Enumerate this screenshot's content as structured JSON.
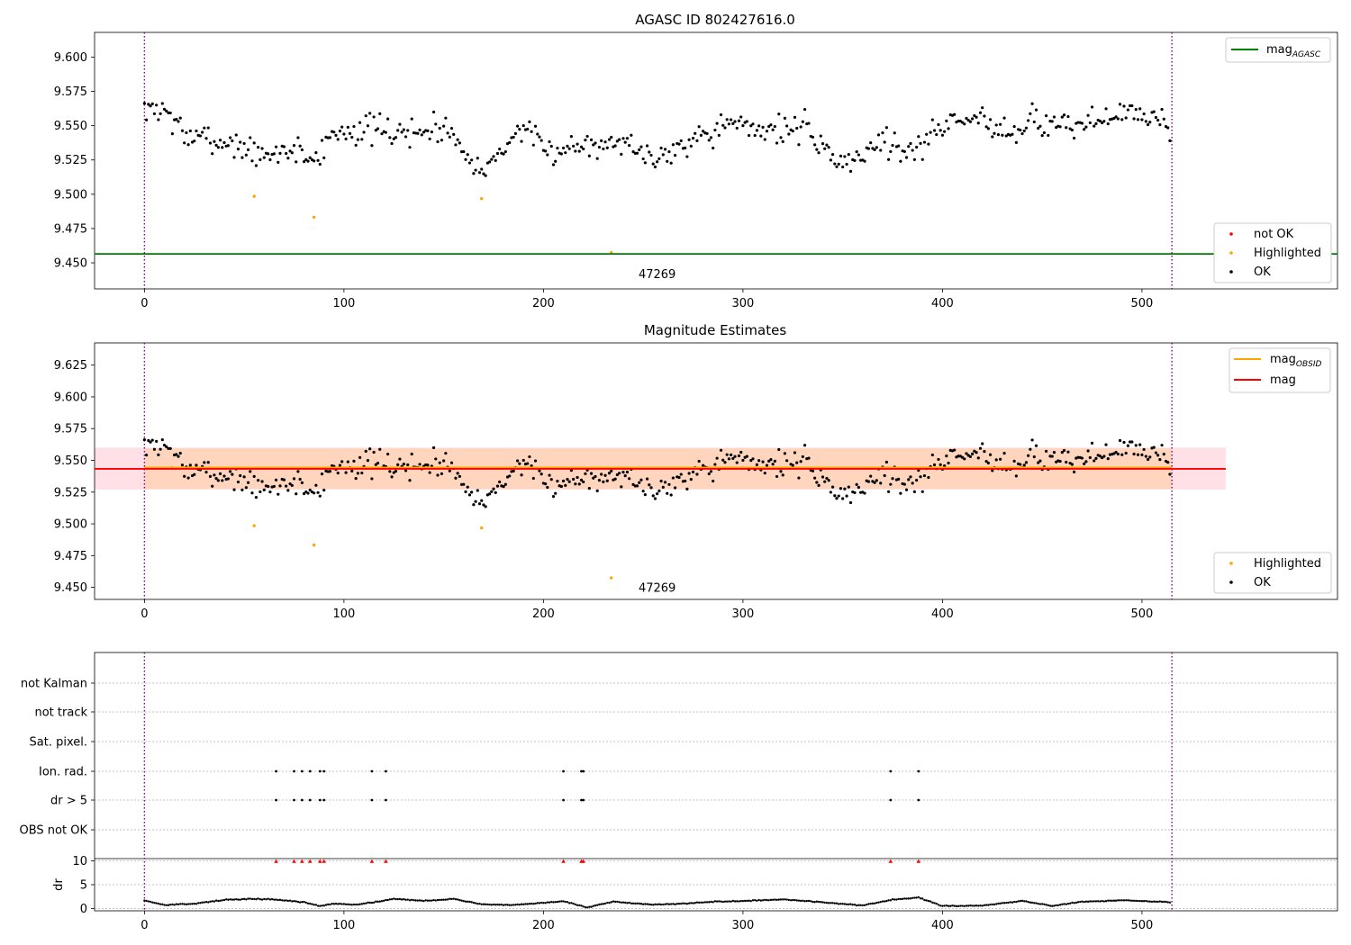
{
  "chart_data": [
    {
      "type": "scatter",
      "title": "AGASC ID 802427616.0",
      "xlim": [
        -25,
        598
      ],
      "ylim": [
        9.431,
        9.618
      ],
      "yticks": [
        "9.450",
        "9.475",
        "9.500",
        "9.525",
        "9.550",
        "9.575",
        "9.600"
      ],
      "xticks": [
        "0",
        "100",
        "200",
        "300",
        "400",
        "500"
      ],
      "obsid_bounds": [
        0,
        515
      ],
      "obsid_label": "47269",
      "obsid_label_pos": [
        257,
        9.4415
      ],
      "mag_agasc": 9.4565,
      "legend_lines": [
        {
          "name": "mag",
          "sub": "AGASC",
          "color": "#008000"
        }
      ],
      "legend_points": [
        {
          "name": "not OK",
          "color": "#ff0000"
        },
        {
          "name": "Highlighted",
          "color": "#ffa500"
        },
        {
          "name": "OK",
          "color": "#000000"
        }
      ],
      "highlighted": [
        [
          55,
          9.4985
        ],
        [
          85,
          9.4833
        ],
        [
          169,
          9.4968
        ],
        [
          234,
          9.4575
        ]
      ],
      "ok_seed": 7,
      "ok_count": 515,
      "ok_anchors": [
        [
          0,
          9.56
        ],
        [
          10,
          9.563
        ],
        [
          20,
          9.543
        ],
        [
          30,
          9.54
        ],
        [
          40,
          9.538
        ],
        [
          50,
          9.535
        ],
        [
          60,
          9.525
        ],
        [
          70,
          9.533
        ],
        [
          80,
          9.53
        ],
        [
          85,
          9.525
        ],
        [
          95,
          9.545
        ],
        [
          110,
          9.548
        ],
        [
          125,
          9.545
        ],
        [
          140,
          9.545
        ],
        [
          150,
          9.55
        ],
        [
          160,
          9.535
        ],
        [
          170,
          9.515
        ],
        [
          180,
          9.535
        ],
        [
          190,
          9.55
        ],
        [
          200,
          9.53
        ],
        [
          215,
          9.535
        ],
        [
          230,
          9.54
        ],
        [
          245,
          9.535
        ],
        [
          255,
          9.525
        ],
        [
          270,
          9.538
        ],
        [
          290,
          9.55
        ],
        [
          310,
          9.548
        ],
        [
          330,
          9.548
        ],
        [
          340,
          9.535
        ],
        [
          350,
          9.522
        ],
        [
          360,
          9.53
        ],
        [
          370,
          9.54
        ],
        [
          385,
          9.53
        ],
        [
          400,
          9.552
        ],
        [
          420,
          9.555
        ],
        [
          435,
          9.545
        ],
        [
          445,
          9.555
        ],
        [
          460,
          9.548
        ],
        [
          475,
          9.553
        ],
        [
          490,
          9.56
        ],
        [
          505,
          9.555
        ],
        [
          515,
          9.55
        ]
      ]
    },
    {
      "type": "scatter",
      "title": "Magnitude Estimates",
      "xlim": [
        -25,
        598
      ],
      "ylim": [
        9.4405,
        9.6425
      ],
      "yticks": [
        "9.450",
        "9.475",
        "9.500",
        "9.525",
        "9.550",
        "9.575",
        "9.600",
        "9.625"
      ],
      "xticks": [
        "0",
        "100",
        "200",
        "300",
        "400",
        "500"
      ],
      "obsid_bounds": [
        0,
        515
      ],
      "obsid_label": "47269",
      "obsid_label_pos": [
        257,
        9.4495
      ],
      "mag": 9.5433,
      "mag_obsid": 9.5443,
      "band_outer": [
        9.527,
        9.56
      ],
      "band_inner": [
        9.5275,
        9.5595
      ],
      "band_outer_x": [
        -25,
        542
      ],
      "band_inner_x": [
        0,
        515
      ],
      "legend_lines": [
        {
          "name": "mag",
          "sub": "OBSID",
          "color": "#ffa500"
        },
        {
          "name": "mag",
          "sub": "",
          "color": "#ff0000"
        }
      ],
      "legend_points": [
        {
          "name": "Highlighted",
          "color": "#ffa500"
        },
        {
          "name": "OK",
          "color": "#000000"
        }
      ],
      "highlighted": [
        [
          55,
          9.4985
        ],
        [
          85,
          9.4833
        ],
        [
          169,
          9.4968
        ],
        [
          234,
          9.4575
        ]
      ]
    },
    {
      "type": "scatter",
      "title": "",
      "xlim": [
        -25,
        598
      ],
      "xticks": [
        "0",
        "100",
        "200",
        "300",
        "400",
        "500"
      ],
      "obsid_bounds": [
        0,
        515
      ],
      "flag_labels": [
        "not Kalman",
        "not track",
        "Sat. pixel.",
        "Ion. rad.",
        "dr > 5",
        "OBS not OK"
      ],
      "flag_points": {
        "Ion. rad.": [
          66,
          75,
          79,
          83,
          88,
          90,
          114,
          121,
          210,
          219,
          220,
          374,
          388
        ],
        "dr > 5": [
          66,
          75,
          79,
          83,
          88,
          90,
          114,
          121,
          210,
          219,
          220,
          374,
          388
        ]
      },
      "dr_ylabel": "dr",
      "dr_yticks": [
        "0",
        "5",
        "10"
      ],
      "dr_ylim": [
        -0.5,
        10.5
      ],
      "dr_high": [
        [
          66,
          9.9
        ],
        [
          75,
          9.9
        ],
        [
          79,
          9.9
        ],
        [
          83,
          9.9
        ],
        [
          88,
          9.9
        ],
        [
          90,
          9.9
        ],
        [
          114,
          9.9
        ],
        [
          121,
          9.9
        ],
        [
          210,
          9.9
        ],
        [
          219,
          9.9
        ],
        [
          220,
          9.9
        ],
        [
          374,
          9.9
        ],
        [
          388,
          9.9
        ]
      ],
      "dr_anchors": [
        [
          0,
          1.7
        ],
        [
          10,
          0.7
        ],
        [
          25,
          1.0
        ],
        [
          40,
          1.8
        ],
        [
          55,
          2.0
        ],
        [
          65,
          1.9
        ],
        [
          80,
          1.3
        ],
        [
          88,
          0.5
        ],
        [
          95,
          1.0
        ],
        [
          105,
          0.8
        ],
        [
          115,
          1.3
        ],
        [
          125,
          2.0
        ],
        [
          140,
          1.6
        ],
        [
          155,
          2.0
        ],
        [
          170,
          0.8
        ],
        [
          185,
          0.7
        ],
        [
          200,
          1.2
        ],
        [
          210,
          1.5
        ],
        [
          222,
          0.2
        ],
        [
          235,
          1.4
        ],
        [
          255,
          0.8
        ],
        [
          270,
          1.0
        ],
        [
          285,
          1.4
        ],
        [
          300,
          1.6
        ],
        [
          320,
          1.9
        ],
        [
          340,
          1.3
        ],
        [
          360,
          0.6
        ],
        [
          375,
          1.8
        ],
        [
          388,
          2.3
        ],
        [
          400,
          0.5
        ],
        [
          420,
          0.6
        ],
        [
          440,
          1.6
        ],
        [
          455,
          0.5
        ],
        [
          470,
          1.4
        ],
        [
          490,
          1.7
        ],
        [
          515,
          1.3
        ]
      ],
      "dr_seed": 13
    }
  ]
}
